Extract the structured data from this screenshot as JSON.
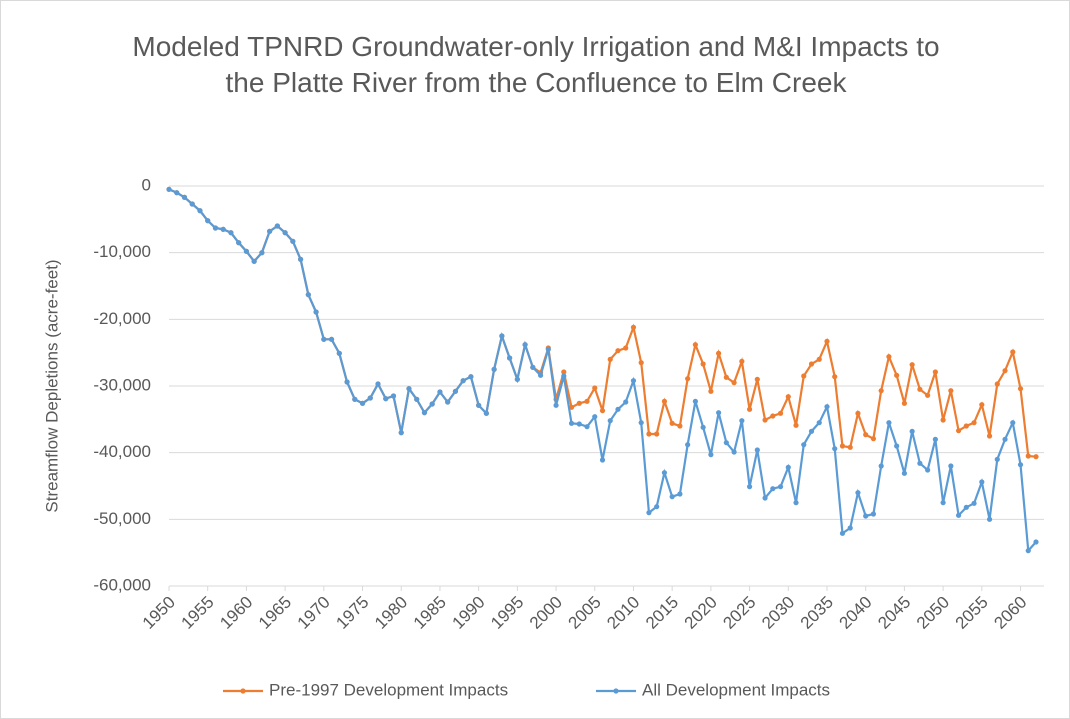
{
  "chart_data": {
    "type": "line",
    "title": "Modeled TPNRD Groundwater-only Irrigation and M&I Impacts to the Platte River from the Confluence to Elm Creek",
    "y_label": "Streamflow Depletions (acre-feet)",
    "x": [
      1950,
      1951,
      1952,
      1953,
      1954,
      1955,
      1956,
      1957,
      1958,
      1959,
      1960,
      1961,
      1962,
      1963,
      1964,
      1965,
      1966,
      1967,
      1968,
      1969,
      1970,
      1971,
      1972,
      1973,
      1974,
      1975,
      1976,
      1977,
      1978,
      1979,
      1980,
      1981,
      1982,
      1983,
      1984,
      1985,
      1986,
      1987,
      1988,
      1989,
      1990,
      1991,
      1992,
      1993,
      1994,
      1995,
      1996,
      1997,
      1998,
      1999,
      2000,
      2001,
      2002,
      2003,
      2004,
      2005,
      2006,
      2007,
      2008,
      2009,
      2010,
      2011,
      2012,
      2013,
      2014,
      2015,
      2016,
      2017,
      2018,
      2019,
      2020,
      2021,
      2022,
      2023,
      2024,
      2025,
      2026,
      2027,
      2028,
      2029,
      2030,
      2031,
      2032,
      2033,
      2034,
      2035,
      2036,
      2037,
      2038,
      2039,
      2040,
      2041,
      2042,
      2043,
      2044,
      2045,
      2046,
      2047,
      2048,
      2049,
      2050,
      2051,
      2052,
      2053,
      2054,
      2055,
      2056,
      2057,
      2058,
      2059,
      2060,
      2061,
      2062
    ],
    "series": [
      {
        "name": "Pre-1997 Development Impacts",
        "color": "#ed7d31",
        "values": [
          -500,
          -1000,
          -1700,
          -2700,
          -3700,
          -5200,
          -6300,
          -6500,
          -7000,
          -8500,
          -9800,
          -11300,
          -10000,
          -6800,
          -6000,
          -7000,
          -8300,
          -11000,
          -16300,
          -18900,
          -23000,
          -23000,
          -25100,
          -29400,
          -32000,
          -32600,
          -31800,
          -29700,
          -31900,
          -31500,
          -37000,
          -30400,
          -32000,
          -34000,
          -32700,
          -30900,
          -32400,
          -30800,
          -29200,
          -28600,
          -32900,
          -34100,
          -27500,
          -22500,
          -25800,
          -29000,
          -23800,
          -27200,
          -28000,
          -24300,
          -32000,
          -27900,
          -33200,
          -32600,
          -32300,
          -30300,
          -33700,
          -26000,
          -24700,
          -24300,
          -21200,
          -26500,
          -37200,
          -37200,
          -32300,
          -35600,
          -36000,
          -28900,
          -23800,
          -26700,
          -30800,
          -25100,
          -28700,
          -29500,
          -26300,
          -33500,
          -29000,
          -35100,
          -34500,
          -34100,
          -31600,
          -35900,
          -28500,
          -26700,
          -26000,
          -23300,
          -28600,
          -39000,
          -39200,
          -34100,
          -37300,
          -37900,
          -30700,
          -25600,
          -28400,
          -32600,
          -26800,
          -30500,
          -31400,
          -27900,
          -35100,
          -30700,
          -36700,
          -36000,
          -35500,
          -32800,
          -37500,
          -29700,
          -27700,
          -24900,
          -30400,
          -40500,
          -40600
        ]
      },
      {
        "name": "All Development Impacts",
        "color": "#5b9bd5",
        "values": [
          -500,
          -1000,
          -1700,
          -2700,
          -3700,
          -5200,
          -6300,
          -6500,
          -7000,
          -8500,
          -9800,
          -11300,
          -10000,
          -6800,
          -6000,
          -7000,
          -8300,
          -11000,
          -16300,
          -18900,
          -23000,
          -23000,
          -25100,
          -29400,
          -32000,
          -32600,
          -31800,
          -29700,
          -31900,
          -31500,
          -37000,
          -30400,
          -32000,
          -34000,
          -32700,
          -30900,
          -32400,
          -30800,
          -29200,
          -28600,
          -32900,
          -34100,
          -27500,
          -22500,
          -25800,
          -29000,
          -23800,
          -27200,
          -28400,
          -24500,
          -32900,
          -28500,
          -35600,
          -35700,
          -36100,
          -34600,
          -41100,
          -35200,
          -33500,
          -32400,
          -29200,
          -35500,
          -49000,
          -48100,
          -43000,
          -46600,
          -46200,
          -38800,
          -32300,
          -36200,
          -40300,
          -34000,
          -38500,
          -39900,
          -35200,
          -45100,
          -39600,
          -46800,
          -45400,
          -45100,
          -42200,
          -47500,
          -38800,
          -36800,
          -35500,
          -33100,
          -39400,
          -52100,
          -51300,
          -46000,
          -49500,
          -49200,
          -42000,
          -35500,
          -39000,
          -43100,
          -36800,
          -41600,
          -42600,
          -38000,
          -47500,
          -42000,
          -49400,
          -48200,
          -47600,
          -44400,
          -50000,
          -41000,
          -38000,
          -35500,
          -41800,
          -54700,
          -53400
        ]
      }
    ],
    "xlim": [
      1950,
      2062
    ],
    "xticks": [
      1950,
      1955,
      1960,
      1965,
      1970,
      1975,
      1980,
      1985,
      1990,
      1995,
      2000,
      2005,
      2010,
      2015,
      2020,
      2025,
      2030,
      2035,
      2040,
      2045,
      2050,
      2055,
      2060
    ],
    "ylim": [
      -60000,
      0
    ],
    "yticks": [
      {
        "value": -60000,
        "label": "-60,000"
      },
      {
        "value": -50000,
        "label": "-50,000"
      },
      {
        "value": -40000,
        "label": "-40,000"
      },
      {
        "value": -30000,
        "label": "-30,000"
      },
      {
        "value": -20000,
        "label": "-20,000"
      },
      {
        "value": -10000,
        "label": "-10,000"
      },
      0
    ],
    "grid": true,
    "legend": "bottom"
  }
}
